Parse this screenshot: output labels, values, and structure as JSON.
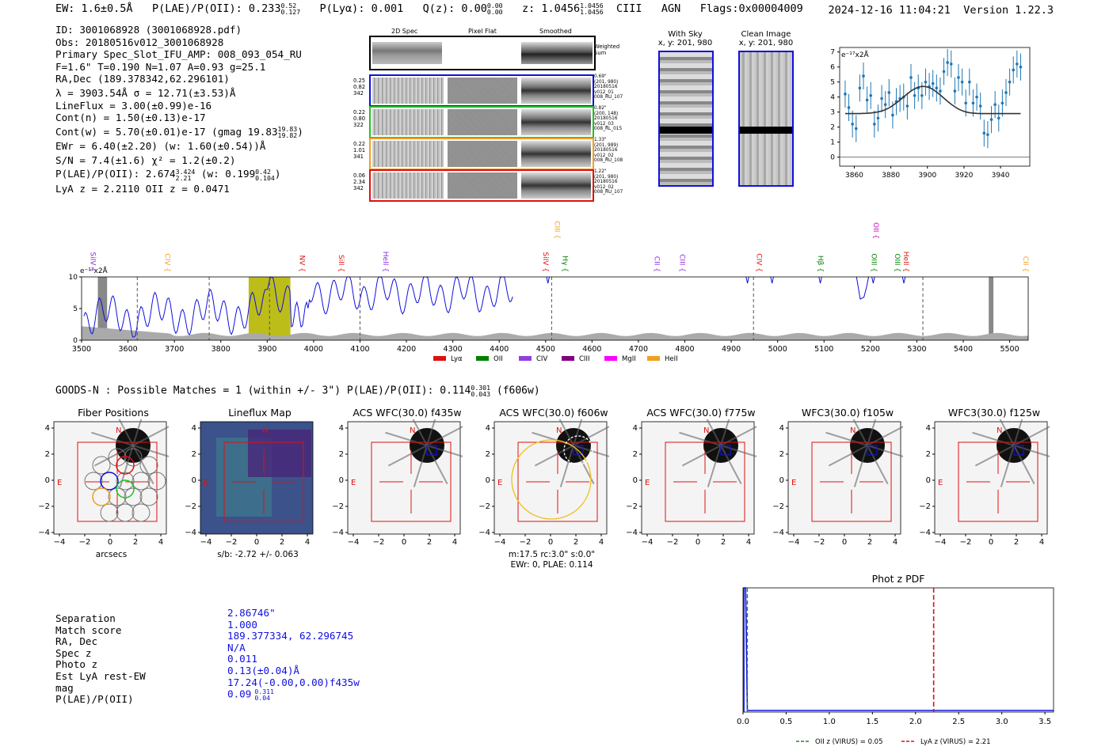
{
  "header": {
    "ew": "EW: 1.6±0.5Å",
    "plae_label": "P(LAE)/P(OII): 0.233",
    "plae_hi": "0.52",
    "plae_lo": "0.127",
    "plya": "P(Lyα): 0.001",
    "qz_label": "Q(z): 0.00",
    "qz_hi": "0.00",
    "qz_lo": "0.00",
    "z_label": "z: 1.0456",
    "z_hi": "1.0456",
    "z_lo": "1.0456",
    "line": "CIII",
    "cls": "AGN",
    "flags": "Flags:0x00004009",
    "timestamp": "2024-12-16 11:04:21",
    "version": "Version 1.22.3"
  },
  "info": {
    "id": "ID: 3001068928 (3001068928.pdf)",
    "obs": "Obs: 20180516v012_3001068928",
    "primary": "Primary Spec_Slot_IFU_AMP: 008_093_054_RU",
    "fparams": "F=1.6\"  T=0.190  N=1.07  A=0.93  g=25.1",
    "radec": "RA,Dec (189.378342,62.296101)",
    "lambda": "λ = 3903.54Å  σ = 12.71(±3.53)Å",
    "lineflux": "LineFlux = 3.00(±0.99)e-16",
    "contn": "Cont(n) = 1.50(±0.13)e-17",
    "contw": "Cont(w) = 5.70(±0.01)e-17 (gmag 19.83",
    "contw_hi": "19.83",
    "contw_lo": "19.82",
    "ewr": "EWr = 6.40(±2.20) (w: 1.60(±0.54))Å",
    "sn": "S/N = 7.4(±1.6)  χ² = 1.2(±0.2)",
    "plae": "P(LAE)/P(OII): 2.674",
    "plae_hi": "3.424",
    "plae_lo": "2.21",
    "plae_w": "(w: 0.199",
    "plae_w_hi": "0.42",
    "plae_w_lo": "0.104",
    "lya_z": "LyA z = 2.2110  OII z = 0.0471"
  },
  "cutouts": {
    "col_2d": "2D Spec",
    "col_flat": "Pixel Flat",
    "col_smooth": "Smoothed",
    "weighted": "Weighted Sum",
    "rows": [
      {
        "stats": [
          "0.25",
          "0.82",
          "342"
        ],
        "meta": [
          "0.69\"",
          "(201, 980)",
          "20180516",
          "v012_01",
          "008_RU_107"
        ],
        "color": "#1010e0"
      },
      {
        "stats": [
          "0.22",
          "0.80",
          "322"
        ],
        "meta": [
          "0.82\"",
          "(200, 148)",
          "20180516",
          "v012_03",
          "008_RL_015"
        ],
        "color": "#22c022"
      },
      {
        "stats": [
          "0.22",
          "1.01",
          "341"
        ],
        "meta": [
          "1.33\"",
          "(201, 989)",
          "20180516",
          "v012_02",
          "008_RU_108"
        ],
        "color": "#f0a020"
      },
      {
        "stats": [
          "0.06",
          "2.34",
          "342"
        ],
        "meta": [
          "1.22\"",
          "(201, 980)",
          "20180516",
          "v012_02",
          "008_RU_107"
        ],
        "color": "#e01010"
      }
    ],
    "with_sky": "With Sky",
    "with_sky_xy": "x, y: 201, 980",
    "clean": "Clean Image",
    "clean_xy": "x, y: 201, 980"
  },
  "zoom_chart": {
    "chart_data": {
      "type": "scatter",
      "ylabel": "e⁻¹⁷x2Å",
      "xlim": [
        3852,
        3956
      ],
      "ylim": [
        -0.6,
        7.3
      ],
      "xticks": [
        "3860",
        "3880",
        "3900",
        "3920",
        "3940"
      ],
      "yticks": [
        "0",
        "1",
        "2",
        "3",
        "4",
        "5",
        "6",
        "7"
      ],
      "x": [
        3855,
        3857,
        3859,
        3861,
        3863,
        3865,
        3867,
        3869,
        3871,
        3873,
        3875,
        3877,
        3879,
        3881,
        3883,
        3885,
        3887,
        3889,
        3891,
        3893,
        3895,
        3897,
        3899,
        3901,
        3903,
        3905,
        3907,
        3909,
        3911,
        3913,
        3915,
        3917,
        3919,
        3921,
        3923,
        3925,
        3927,
        3929,
        3931,
        3933,
        3935,
        3937,
        3939,
        3941,
        3943,
        3945,
        3947,
        3949,
        3951
      ],
      "y": [
        4.2,
        3.3,
        2.2,
        1.9,
        4.6,
        5.4,
        3.8,
        4.1,
        2.2,
        2.6,
        3.9,
        3.5,
        4.3,
        2.8,
        3.7,
        3.9,
        4.0,
        3.4,
        5.3,
        4.1,
        4.6,
        4.1,
        5.0,
        4.7,
        4.9,
        4.6,
        4.4,
        5.7,
        6.3,
        6.2,
        4.4,
        5.3,
        5.0,
        3.6,
        5.0,
        3.6,
        4.0,
        3.4,
        1.6,
        1.5,
        2.5,
        3.5,
        2.6,
        3.6,
        4.3,
        5.0,
        5.8,
        6.2,
        6.0
      ],
      "fit": [
        2.9,
        2.9,
        2.9,
        2.9,
        2.9,
        2.91,
        2.92,
        2.94,
        2.97,
        3.01,
        3.07,
        3.16,
        3.28,
        3.43,
        3.61,
        3.8,
        4.01,
        4.21,
        4.4,
        4.55,
        4.66,
        4.71,
        4.7,
        4.63,
        4.51,
        4.34,
        4.14,
        3.93,
        3.72,
        3.52,
        3.35,
        3.2,
        3.09,
        3.01,
        2.96,
        2.93,
        2.91,
        2.9,
        2.9,
        2.9,
        2.9,
        2.9,
        2.9,
        2.9,
        2.9,
        2.9,
        2.9,
        2.9,
        2.9
      ],
      "err": 0.9
    }
  },
  "spectrum": {
    "chart_data": {
      "type": "line",
      "ylabel": "e⁻¹⁷x2Å",
      "xlim": [
        3500,
        5540
      ],
      "ylim": [
        0,
        10
      ],
      "xticks": [
        "3500",
        "3600",
        "3700",
        "3800",
        "3900",
        "4000",
        "4100",
        "4200",
        "4300",
        "4400",
        "4500",
        "4600",
        "4700",
        "4800",
        "4900",
        "5000",
        "5100",
        "5200",
        "5300",
        "5400",
        "5500"
      ],
      "yticks": [
        "0",
        "5",
        "10"
      ],
      "line_labels": [
        {
          "name": "SiIV",
          "wave": 3520,
          "color": "#8a2be2"
        },
        {
          "name": "CIV",
          "wave": 3680,
          "color": "#f0a020"
        },
        {
          "name": "NV",
          "wave": 3970,
          "color": "#e01010"
        },
        {
          "name": "SiII",
          "wave": 4055,
          "color": "#e01010"
        },
        {
          "name": "HeII",
          "wave": 4150,
          "color": "#8a2be2"
        },
        {
          "name": "CIII",
          "wave": 4520,
          "color": "#f0a020",
          "high": true
        },
        {
          "name": "SiIV",
          "wave": 4495,
          "color": "#e01010"
        },
        {
          "name": "Hγ",
          "wave": 4537,
          "color": "#008000"
        },
        {
          "name": "CII",
          "wave": 4735,
          "color": "#8a2be2"
        },
        {
          "name": "CIII",
          "wave": 4790,
          "color": "#8a2be2"
        },
        {
          "name": "CIV",
          "wave": 4955,
          "color": "#e01010"
        },
        {
          "name": "Hβ",
          "wave": 5088,
          "color": "#008000"
        },
        {
          "name": "OIII",
          "wave": 5203,
          "color": "#008000"
        },
        {
          "name": "OII",
          "wave": 5207,
          "color": "#d000d0",
          "high": true
        },
        {
          "name": "OIII",
          "wave": 5253,
          "color": "#008000"
        },
        {
          "name": "HeII",
          "wave": 5272,
          "color": "#e01010"
        },
        {
          "name": "CII",
          "wave": 5530,
          "color": "#f0a020"
        }
      ],
      "dashed_lines": [
        3620,
        3775,
        3905,
        4100,
        4513,
        4948,
        5313
      ],
      "highlight": [
        3860,
        3950
      ],
      "gray_bands": [
        [
          3535,
          3555
        ],
        [
          5455,
          5465
        ]
      ],
      "legend": [
        {
          "name": "Lyα",
          "color": "#e01010"
        },
        {
          "name": "OII",
          "color": "#008000"
        },
        {
          "name": "CIV",
          "color": "#9040e0"
        },
        {
          "name": "CIII",
          "color": "#800080"
        },
        {
          "name": "MgII",
          "color": "#ff00ff"
        },
        {
          "name": "HeII",
          "color": "#f0a020"
        }
      ]
    }
  },
  "imaging": {
    "summary": "GOODS-N : Possible Matches = 1 (within +/- 3\")  P(LAE)/P(OII): 0.114",
    "summary_hi": "0.301",
    "summary_lo": "0.043",
    "summary_tail": "(f606w)",
    "panels": [
      {
        "title": "Fiber Positions",
        "caption1": "arcsecs",
        "caption2": ""
      },
      {
        "title": "Lineflux Map",
        "caption1": "s/b: -2.72 +/- 0.063",
        "caption2": ""
      },
      {
        "title": "ACS WFC(30.0) f435w",
        "caption1": "",
        "caption2": ""
      },
      {
        "title": "ACS WFC(30.0) f606w",
        "caption1": "m:17.5 rc:3.0\"  s:0.0\"",
        "caption2": "EWr: 0, PLAE: 0.114"
      },
      {
        "title": "ACS WFC(30.0) f775w",
        "caption1": "",
        "caption2": ""
      },
      {
        "title": "WFC3(30.0) f105w",
        "caption1": "",
        "caption2": ""
      },
      {
        "title": "WFC3(30.0) f125w",
        "caption1": "",
        "caption2": ""
      }
    ],
    "xticks": [
      "−4",
      "−2",
      "0",
      "2",
      "4"
    ],
    "yticks": [
      "4",
      "2",
      "0",
      "−2",
      "−4"
    ],
    "north": "N",
    "east": "E"
  },
  "match_table": {
    "labels": [
      "Separation",
      "Match score",
      "RA, Dec",
      "Spec z",
      "Photo z",
      "Est LyA rest-EW",
      "mag",
      "P(LAE)/P(OII)"
    ],
    "values": [
      "2.86746\"",
      "1.000",
      "189.377334, 62.296745",
      "N/A",
      "0.011",
      "0.13(±0.04)Å",
      "17.24(-0.00,0.00)f435w",
      "0.09"
    ],
    "plae_hi": "0.311",
    "plae_lo": "0.04"
  },
  "photz": {
    "chart_data": {
      "type": "line",
      "title": "Phot z PDF",
      "xlim": [
        0,
        3.6
      ],
      "xticks": [
        "0.0",
        "0.5",
        "1.0",
        "1.5",
        "2.0",
        "2.5",
        "3.0",
        "3.5"
      ],
      "oii_z": 0.05,
      "lya_z": 2.21,
      "legend_oii": "OII z (VIRUS) = 0.05",
      "legend_lya": "LyA z (VIRUS) = 2.21"
    }
  }
}
